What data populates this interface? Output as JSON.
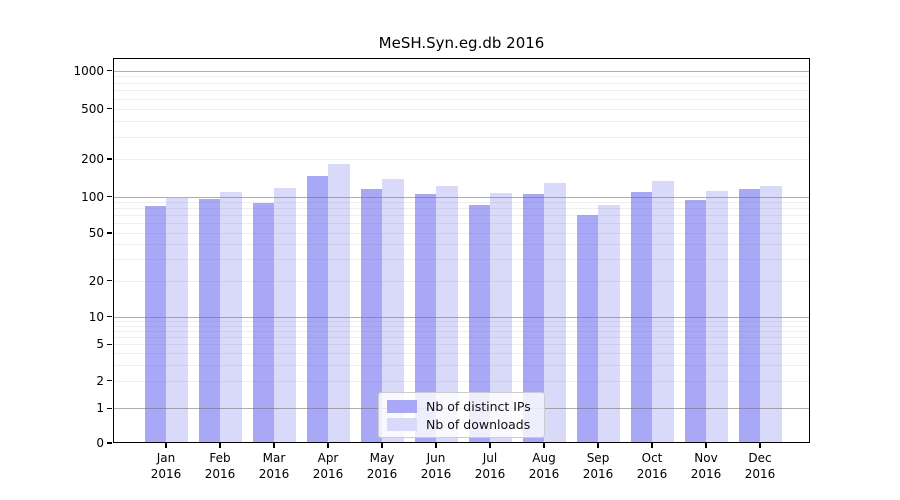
{
  "title": "MeSH.Syn.eg.db 2016",
  "chart_data": {
    "type": "bar",
    "title": "MeSH.Syn.eg.db 2016",
    "months": [
      "Jan",
      "Feb",
      "Mar",
      "Apr",
      "May",
      "Jun",
      "Jul",
      "Aug",
      "Sep",
      "Oct",
      "Nov",
      "Dec"
    ],
    "year": "2016",
    "categories": [
      "Jan 2016",
      "Feb 2016",
      "Mar 2016",
      "Apr 2016",
      "May 2016",
      "Jun 2016",
      "Jul 2016",
      "Aug 2016",
      "Sep 2016",
      "Oct 2016",
      "Nov 2016",
      "Dec 2016"
    ],
    "series": [
      {
        "name": "Nb of distinct IPs",
        "color": "#a8a8f6",
        "values": [
          83,
          95,
          88,
          146,
          116,
          106,
          86,
          105,
          71,
          108,
          94,
          115
        ]
      },
      {
        "name": "Nb of downloads",
        "color": "#d9d9fa",
        "values": [
          97,
          108,
          117,
          181,
          137,
          122,
          107,
          128,
          85,
          133,
          111,
          122
        ]
      }
    ],
    "xlabel": "",
    "ylabel": "",
    "yscale": "log",
    "yticks": [
      0,
      1,
      2,
      5,
      10,
      20,
      50,
      100,
      200,
      500,
      1000
    ],
    "ylim": [
      0,
      1300
    ],
    "grid": "horizontal, gray major lines at powers of 10 plus faint log minors",
    "legend_position": "inside bottom-center"
  }
}
